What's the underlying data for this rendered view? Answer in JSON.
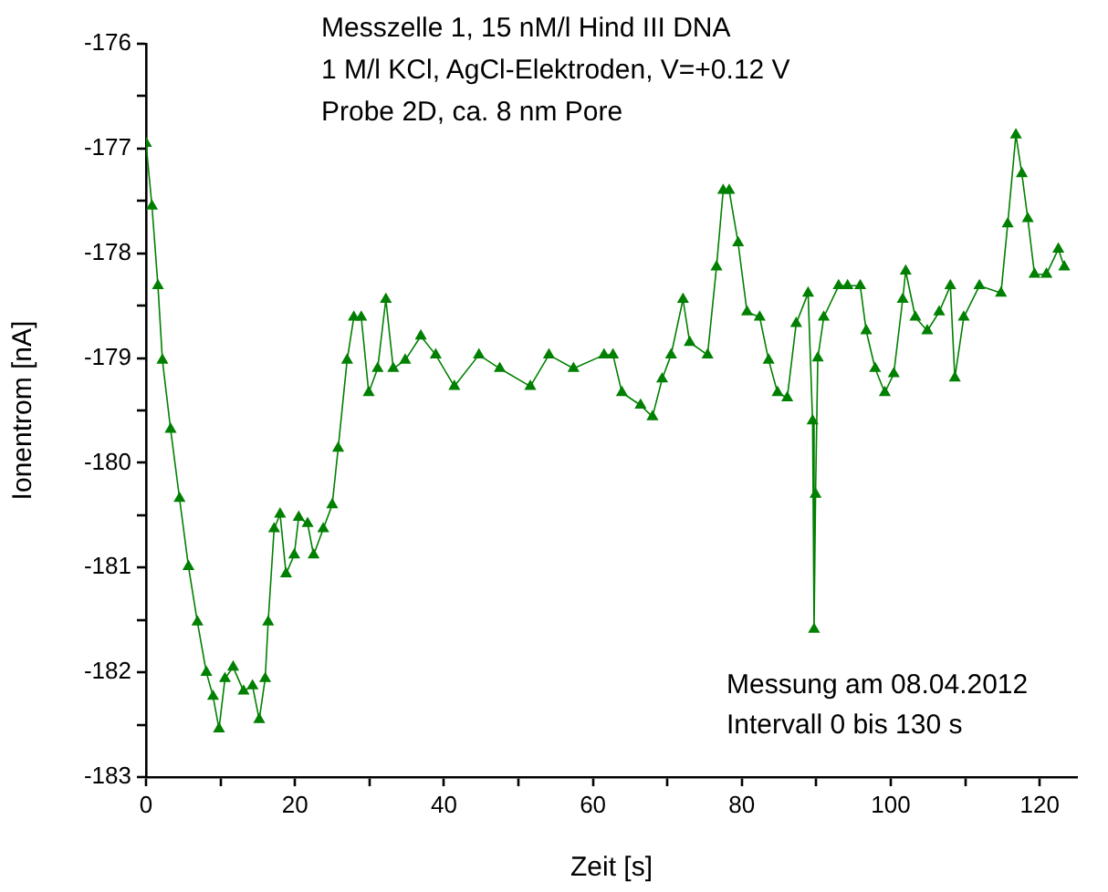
{
  "chart_data": {
    "type": "line",
    "title": "Messzelle 1, 15 nM/l Hind III DNA",
    "subtitle": "1 M/l KCl, AgCl-Elektroden, V=+0.12 V",
    "xlabel": "Zeit [s]",
    "ylabel": "Ionentrom [nA]",
    "annotations": [
      "Probe 2D, ca. 8 nm Pore",
      "Messung am 08.04.2012",
      "Intervall 0 bis 130 s"
    ],
    "x": [
      0,
      0.8,
      1.6,
      2.2,
      3.3,
      4.5,
      5.7,
      6.9,
      8.1,
      9.0,
      9.8,
      10.6,
      11.7,
      13.1,
      14.3,
      15.2,
      16.0,
      16.4,
      17.2,
      18.0,
      18.8,
      19.9,
      20.5,
      21.7,
      22.5,
      23.8,
      25.0,
      25.8,
      27.0,
      27.9,
      28.9,
      29.9,
      31.1,
      32.2,
      33.2,
      34.8,
      36.9,
      38.9,
      41.4,
      44.7,
      47.5,
      51.6,
      54.1,
      57.4,
      61.5,
      62.7,
      63.9,
      66.4,
      68.0,
      69.3,
      70.5,
      72.1,
      73.0,
      75.4,
      76.6,
      77.5,
      78.3,
      79.5,
      80.7,
      82.4,
      83.6,
      84.8,
      86.1,
      87.3,
      88.9,
      89.5,
      89.7,
      89.9,
      90.2,
      91.0,
      93.0,
      94.2,
      95.9,
      96.7,
      97.9,
      99.2,
      100.4,
      101.6,
      102.0,
      103.3,
      104.9,
      106.5,
      108.0,
      108.6,
      109.8,
      111.9,
      114.8,
      115.7,
      116.8,
      117.6,
      118.4,
      119.3,
      120.9,
      122.5,
      123.3
    ],
    "series": [
      {
        "color": "#008000",
        "values": [
          -176.95,
          -177.55,
          -178.31,
          -179.02,
          -179.68,
          -180.34,
          -180.99,
          -181.52,
          -182.0,
          -182.23,
          -182.54,
          -182.06,
          -181.95,
          -182.18,
          -182.13,
          -182.45,
          -182.06,
          -181.52,
          -180.63,
          -180.49,
          -181.06,
          -180.88,
          -180.52,
          -180.58,
          -180.88,
          -180.63,
          -180.4,
          -179.86,
          -179.02,
          -178.61,
          -178.61,
          -179.33,
          -179.1,
          -178.44,
          -179.1,
          -179.02,
          -178.79,
          -178.97,
          -179.27,
          -178.97,
          -179.1,
          -179.27,
          -178.97,
          -179.1,
          -178.97,
          -178.97,
          -179.33,
          -179.45,
          -179.56,
          -179.2,
          -178.97,
          -178.44,
          -178.85,
          -178.97,
          -178.13,
          -177.4,
          -177.4,
          -177.9,
          -178.56,
          -178.61,
          -179.02,
          -179.33,
          -179.38,
          -178.67,
          -178.38,
          -179.6,
          -181.59,
          -180.3,
          -179.0,
          -178.61,
          -178.31,
          -178.31,
          -178.31,
          -178.74,
          -179.1,
          -179.33,
          -179.15,
          -178.44,
          -178.17,
          -178.61,
          -178.74,
          -178.56,
          -178.31,
          -179.19,
          -178.61,
          -178.31,
          -178.38,
          -177.72,
          -176.87,
          -177.24,
          -177.67,
          -178.2,
          -178.2,
          -177.96,
          -178.13
        ]
      }
    ],
    "xlim": [
      0,
      125
    ],
    "ylim": [
      -183,
      -176
    ],
    "xticks": [
      0,
      {
        "value": 10,
        "label": null
      },
      20,
      {
        "value": 30,
        "label": null
      },
      40,
      {
        "value": 50,
        "label": null
      },
      60,
      {
        "value": 70,
        "label": null
      },
      80,
      {
        "value": 90,
        "label": null
      },
      100,
      {
        "value": 110,
        "label": null
      },
      120
    ],
    "yticks": [
      -183,
      {
        "value": -182.5,
        "label": null
      },
      -182,
      {
        "value": -181.5,
        "label": null
      },
      -181,
      {
        "value": -180.5,
        "label": null
      },
      -180,
      {
        "value": -179.5,
        "label": null
      },
      -179,
      {
        "value": -178.5,
        "label": null
      },
      -178,
      {
        "value": -177.5,
        "label": null
      },
      -177,
      {
        "value": -176.5,
        "label": null
      },
      -176
    ],
    "grid": false,
    "legend": false,
    "marker": "triangle",
    "line_style": "solid"
  }
}
